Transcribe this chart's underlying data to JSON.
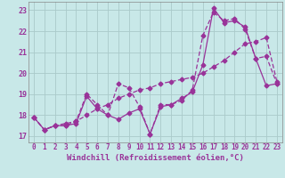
{
  "xlabel": "Windchill (Refroidissement éolien,°C)",
  "bg_color": "#c8e8e8",
  "grid_color": "#aacaca",
  "line_color": "#993399",
  "xlim": [
    -0.5,
    23.5
  ],
  "ylim": [
    16.7,
    23.4
  ],
  "xticks": [
    0,
    1,
    2,
    3,
    4,
    5,
    6,
    7,
    8,
    9,
    10,
    11,
    12,
    13,
    14,
    15,
    16,
    17,
    18,
    19,
    20,
    21,
    22,
    23
  ],
  "yticks": [
    17,
    18,
    19,
    20,
    21,
    22,
    23
  ],
  "series1_x": [
    0,
    1,
    2,
    3,
    4,
    5,
    6,
    7,
    8,
    9,
    10,
    11,
    12,
    13,
    14,
    15,
    16,
    17,
    18,
    19,
    20,
    21,
    22,
    23
  ],
  "series1_y": [
    17.9,
    17.3,
    17.5,
    17.5,
    17.6,
    18.9,
    18.3,
    18.0,
    17.8,
    18.1,
    18.3,
    17.1,
    18.4,
    18.5,
    18.8,
    19.1,
    20.4,
    23.1,
    22.4,
    22.5,
    22.2,
    20.7,
    19.4,
    19.5
  ],
  "series2_x": [
    0,
    1,
    2,
    3,
    4,
    5,
    6,
    7,
    8,
    9,
    10,
    11,
    12,
    13,
    14,
    15,
    16,
    17,
    18,
    19,
    20,
    21,
    22,
    23
  ],
  "series2_y": [
    17.9,
    17.3,
    17.5,
    17.5,
    17.7,
    19.0,
    18.5,
    18.0,
    19.5,
    19.3,
    18.4,
    17.1,
    18.5,
    18.5,
    18.7,
    19.2,
    21.8,
    22.9,
    22.5,
    22.6,
    22.1,
    20.7,
    20.8,
    19.5
  ],
  "series3_x": [
    0,
    1,
    2,
    3,
    4,
    5,
    6,
    7,
    8,
    9,
    10,
    11,
    12,
    13,
    14,
    15,
    16,
    17,
    18,
    19,
    20,
    21,
    22,
    23
  ],
  "series3_y": [
    17.9,
    17.3,
    17.5,
    17.6,
    17.7,
    18.0,
    18.3,
    18.5,
    18.8,
    19.0,
    19.2,
    19.3,
    19.5,
    19.6,
    19.7,
    19.8,
    20.0,
    20.3,
    20.6,
    21.0,
    21.4,
    21.5,
    21.7,
    19.6
  ],
  "markersize": 2.5,
  "linewidth": 0.9,
  "xlabel_fontsize": 6.5,
  "tick_fontsize": 5.5,
  "xlabel_color": "#993399",
  "tick_color": "#993399"
}
